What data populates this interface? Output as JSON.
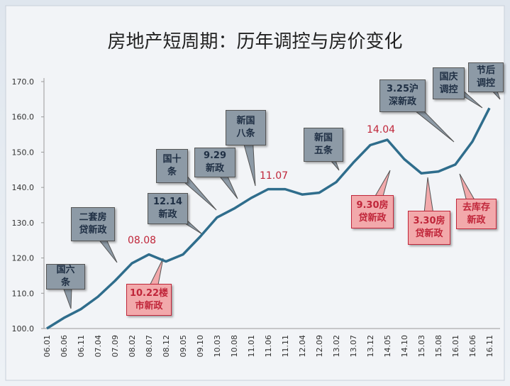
{
  "chart_data": {
    "type": "line",
    "title": "房地产短周期：历年调控与房价变化",
    "categories": [
      "06.01",
      "06.06",
      "06.11",
      "07.04",
      "07.09",
      "08.02",
      "08.07",
      "08.12",
      "09.05",
      "09.10",
      "10.03",
      "10.08",
      "11.01",
      "11.06",
      "11.11",
      "12.04",
      "12.09",
      "13.02",
      "13.07",
      "13.12",
      "14.05",
      "14.10",
      "15.03",
      "15.08",
      "16.01",
      "16.06",
      "16.11"
    ],
    "series": [
      {
        "color": "#2f6d8c",
        "values": [
          100,
          103,
          105.5,
          109,
          113.5,
          118.5,
          121,
          119,
          121,
          126,
          131.5,
          134,
          137,
          139.5,
          139.5,
          138,
          138.5,
          141.5,
          147,
          152,
          153.5,
          148,
          144,
          144.5,
          146.5,
          153,
          162.5
        ]
      }
    ],
    "ylim": [
      100,
      170
    ],
    "yticks": [
      {
        "value": 100,
        "label": "100.0"
      },
      {
        "value": 110,
        "label": "110.0"
      },
      {
        "value": 120,
        "label": "120.0"
      },
      {
        "value": 130,
        "label": "130.0"
      },
      {
        "value": 140,
        "label": "140.0"
      },
      {
        "value": 150,
        "label": "150.0"
      },
      {
        "value": 160,
        "label": "160.0"
      },
      {
        "value": 170,
        "label": "170.0"
      }
    ],
    "peak_labels": [
      "08.08",
      "11.07",
      "14.04"
    ],
    "peak_color": "#c0263a",
    "annotations": [
      {
        "text": "国六\n条",
        "fill": "#8d9aa6"
      },
      {
        "text": "二套房\n贷新政",
        "fill": "#8d9aa6"
      },
      {
        "text": "10.22楼\n市新政",
        "fill": "#f2a9ab"
      },
      {
        "text": "12.14\n新政",
        "fill": "#8d9aa6"
      },
      {
        "text": "国十\n条",
        "fill": "#8d9aa6"
      },
      {
        "text": "9.29\n新政",
        "fill": "#8d9aa6"
      },
      {
        "text": "新国\n八条",
        "fill": "#8d9aa6"
      },
      {
        "text": "新国\n五条",
        "fill": "#8d9aa6"
      },
      {
        "text": "9.30房\n贷新政",
        "fill": "#f2a9ab"
      },
      {
        "text": "3.25沪\n深新政",
        "fill": "#8d9aa6"
      },
      {
        "text": "3.30房\n贷新政",
        "fill": "#f2a9ab"
      },
      {
        "text": "国庆\n调控",
        "fill": "#8d9aa6"
      },
      {
        "text": "去库存\n新政",
        "fill": "#f2a9ab"
      },
      {
        "text": "节后\n调控",
        "fill": "#8d9aa6"
      }
    ]
  }
}
